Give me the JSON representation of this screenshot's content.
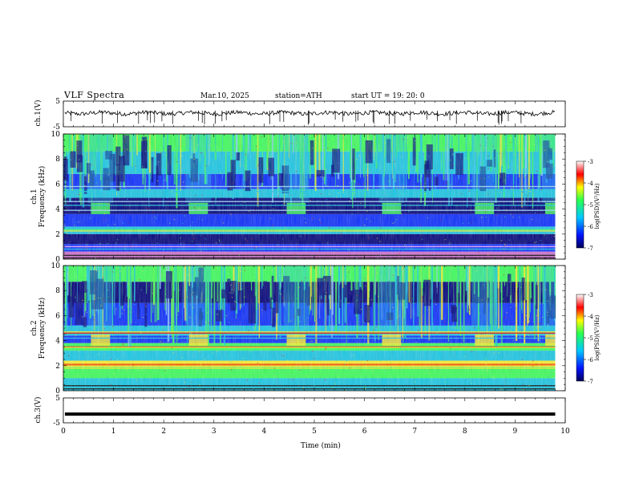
{
  "header": {
    "title": "VLF  Spectra",
    "date": "Mar.10, 2025",
    "station": "station=ATH",
    "start": "start  UT  =   19: 20: 0"
  },
  "chart_data": [
    {
      "type": "line",
      "ylabel": "ch.1(V)",
      "ylim": [
        -5,
        5
      ],
      "yticklabels": [
        "5",
        "-5"
      ],
      "description_level": 0.3
    },
    {
      "type": "heatmap",
      "ylabel_line1": "ch.1",
      "ylabel_line2": "Frequency  (kHz)",
      "ylim": [
        0,
        10
      ],
      "yticklabels": [
        "10",
        "8",
        "6",
        "4",
        "2",
        "0"
      ],
      "colorbar": {
        "label": "log(PSD)(V²/Hz)",
        "ticklabels": [
          "-3",
          "-4",
          "-5",
          "-6",
          "-7"
        ],
        "range": [
          -7,
          -3
        ]
      }
    },
    {
      "type": "heatmap",
      "ylabel_line1": "ch.2",
      "ylabel_line2": "Frequency  (kHz)",
      "ylim": [
        0,
        10
      ],
      "yticklabels": [
        "10",
        "8",
        "6",
        "4",
        "2",
        "0"
      ],
      "colorbar": {
        "label": "log(PSD)(V²/Hz)",
        "ticklabels": [
          "-3",
          "-4",
          "-5",
          "-6",
          "-7"
        ],
        "range": [
          -7,
          -3
        ]
      }
    },
    {
      "type": "line",
      "ylabel": "ch.3(V)",
      "ylim": [
        -5,
        5
      ],
      "yticklabels": [
        "5",
        "-5"
      ],
      "level": -1.5
    }
  ],
  "xaxis": {
    "label": "Time  (min)",
    "ticklabels": [
      "0",
      "1",
      "2",
      "3",
      "4",
      "5",
      "6",
      "7",
      "8",
      "9",
      "10"
    ],
    "range": [
      0,
      10
    ]
  },
  "colors": {
    "dark_blue": "#00007a",
    "blue": "#0a2cff",
    "cyan": "#19c8e6",
    "green": "#3cff5a",
    "yellow": "#ffef28",
    "red": "#e60000"
  }
}
